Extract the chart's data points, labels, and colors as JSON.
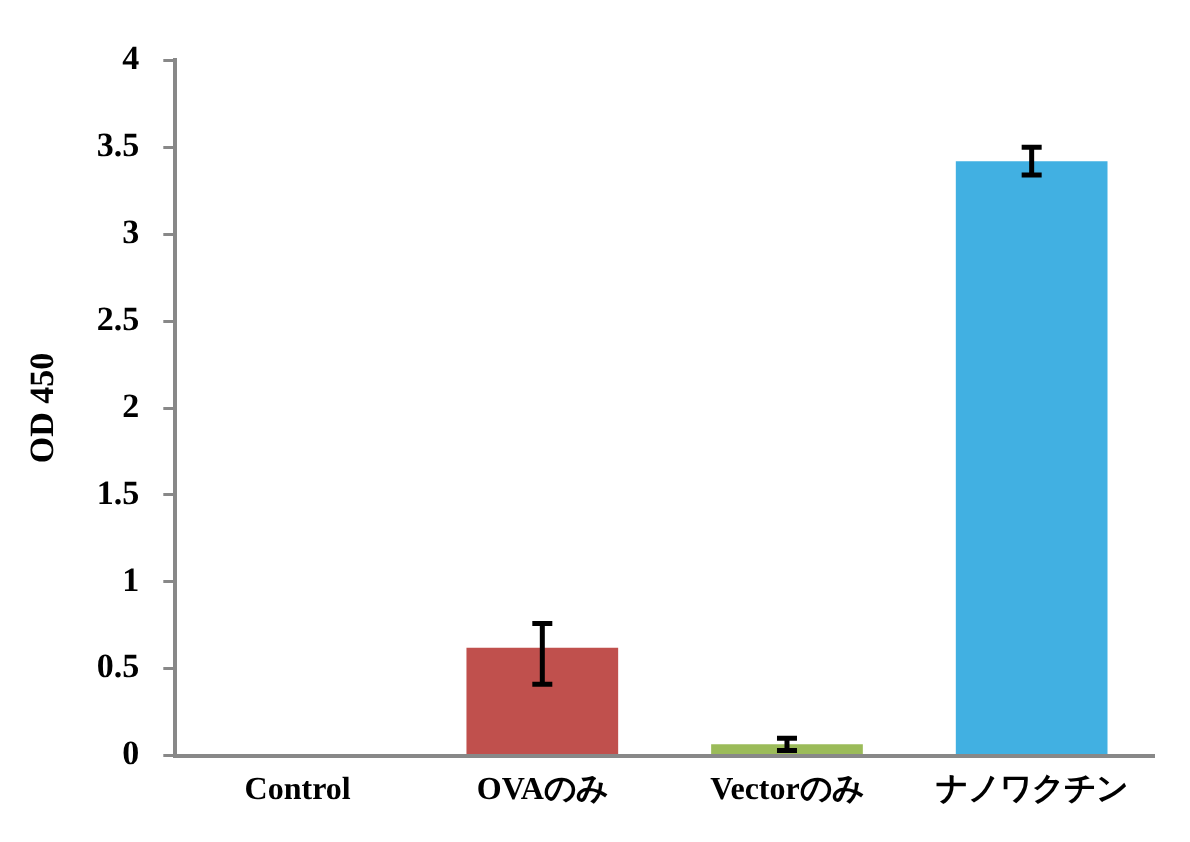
{
  "chart_data": {
    "type": "bar",
    "ylabel": "OD 450",
    "categories": [
      "Control",
      "OVAのみ",
      "Vectorのみ",
      "ナノワクチン"
    ],
    "values": [
      0,
      0.62,
      0.065,
      3.42
    ],
    "colors": [
      "#c0504d",
      "#c0504d",
      "#9bbb59",
      "#41b0e2"
    ],
    "errors": [
      null,
      [
        0.41,
        0.76
      ],
      [
        0.03,
        0.1
      ],
      [
        3.34,
        3.5
      ]
    ],
    "ylim": [
      0,
      4
    ],
    "yticks": [
      0,
      0.5,
      1,
      1.5,
      2,
      2.5,
      3,
      3.5,
      4
    ],
    "grid": false,
    "legend": false
  }
}
